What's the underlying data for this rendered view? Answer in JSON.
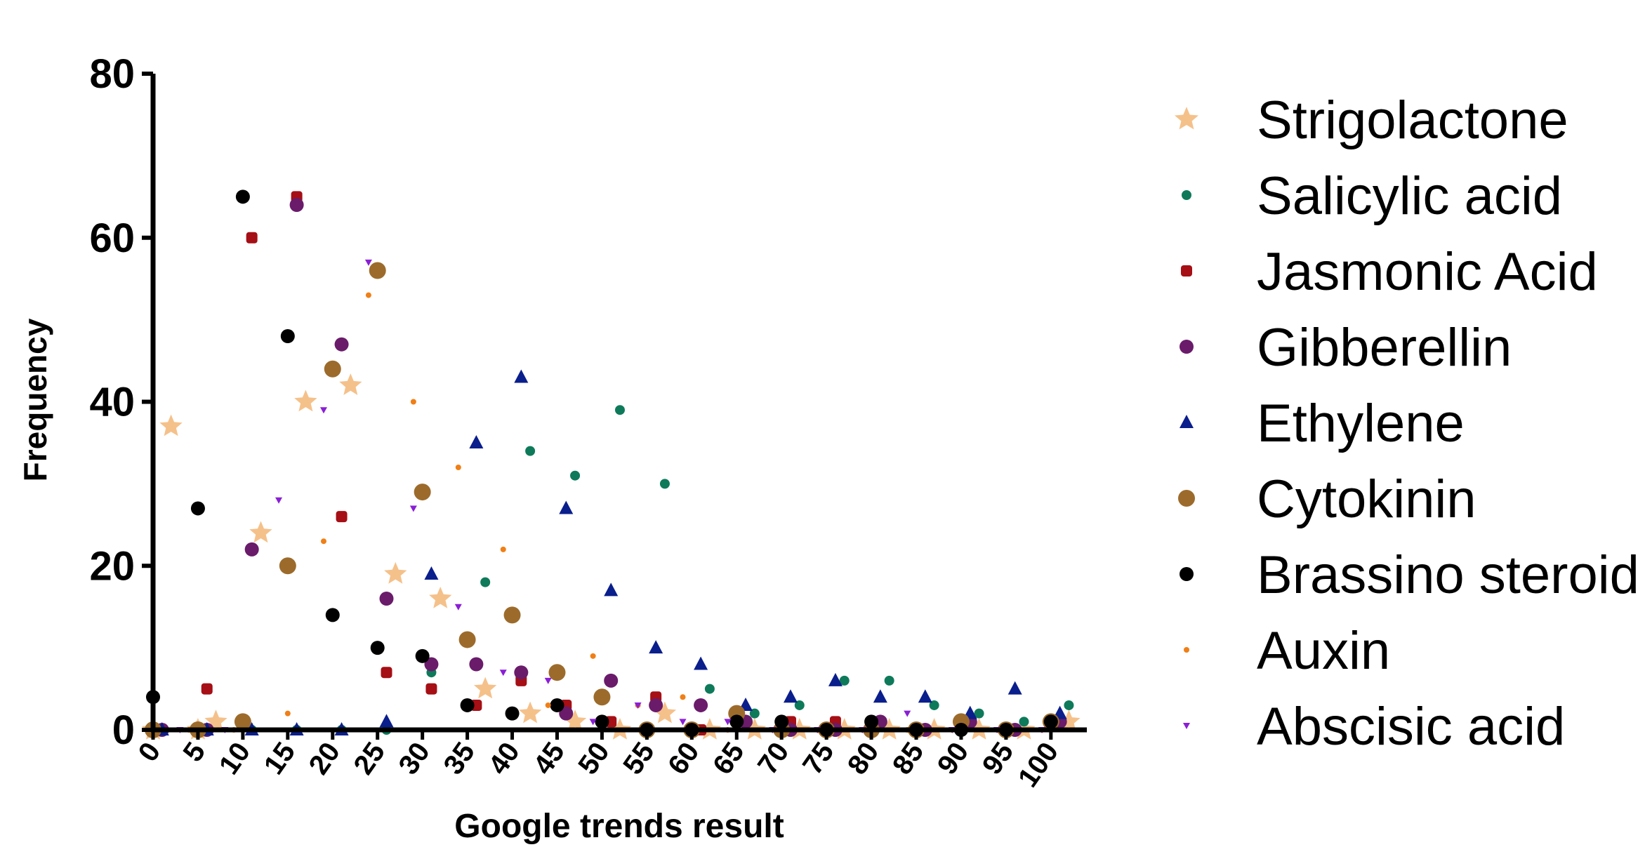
{
  "chart_data": {
    "type": "scatter",
    "xlabel": "Google trends result",
    "ylabel": "Frequency",
    "xlim": [
      0,
      104
    ],
    "ylim": [
      0,
      80
    ],
    "xticks": [
      "0",
      "5",
      "10",
      "15",
      "20",
      "25",
      "30",
      "35",
      "40",
      "45",
      "50",
      "55",
      "60",
      "65",
      "70",
      "75",
      "80",
      "85",
      "90",
      "95",
      "100"
    ],
    "yticks": [
      "0",
      "20",
      "40",
      "60",
      "80"
    ],
    "legend_position": "right",
    "series": [
      {
        "name": "Strigolactone",
        "color": "#F5C18A",
        "marker": "star",
        "points": [
          [
            0,
            0
          ],
          [
            2,
            37
          ],
          [
            5,
            0
          ],
          [
            7,
            1
          ],
          [
            12,
            24
          ],
          [
            17,
            40
          ],
          [
            22,
            42
          ],
          [
            27,
            19
          ],
          [
            32,
            16
          ],
          [
            37,
            5
          ],
          [
            42,
            2
          ],
          [
            47,
            1
          ],
          [
            52,
            0
          ],
          [
            57,
            2
          ],
          [
            62,
            0
          ],
          [
            67,
            0
          ],
          [
            72,
            0
          ],
          [
            77,
            0
          ],
          [
            82,
            0
          ],
          [
            87,
            0
          ],
          [
            92,
            0
          ],
          [
            97,
            0
          ],
          [
            102,
            1
          ]
        ]
      },
      {
        "name": "Salicylic acid",
        "color": "#0E7A5A",
        "marker": "circle-small",
        "points": [
          [
            1,
            0
          ],
          [
            6,
            0
          ],
          [
            11,
            0
          ],
          [
            16,
            0
          ],
          [
            21,
            0
          ],
          [
            26,
            0
          ],
          [
            31,
            7
          ],
          [
            37,
            18
          ],
          [
            42,
            34
          ],
          [
            47,
            31
          ],
          [
            52,
            39
          ],
          [
            57,
            30
          ],
          [
            62,
            5
          ],
          [
            67,
            2
          ],
          [
            72,
            3
          ],
          [
            77,
            6
          ],
          [
            82,
            6
          ],
          [
            87,
            3
          ],
          [
            92,
            2
          ],
          [
            97,
            1
          ],
          [
            102,
            3
          ]
        ]
      },
      {
        "name": "Jasmonic Acid",
        "color": "#A50F15",
        "marker": "square",
        "points": [
          [
            1,
            0
          ],
          [
            6,
            5
          ],
          [
            11,
            60
          ],
          [
            16,
            65
          ],
          [
            21,
            26
          ],
          [
            26,
            7
          ],
          [
            31,
            5
          ],
          [
            36,
            3
          ],
          [
            41,
            6
          ],
          [
            46,
            3
          ],
          [
            51,
            1
          ],
          [
            56,
            4
          ],
          [
            61,
            0
          ],
          [
            66,
            1
          ],
          [
            71,
            1
          ],
          [
            76,
            1
          ],
          [
            81,
            1
          ],
          [
            86,
            0
          ],
          [
            91,
            1
          ],
          [
            96,
            0
          ],
          [
            101,
            1
          ]
        ]
      },
      {
        "name": "Gibberellin",
        "color": "#6A1B6A",
        "marker": "circle",
        "points": [
          [
            1,
            0
          ],
          [
            6,
            0
          ],
          [
            11,
            22
          ],
          [
            16,
            64
          ],
          [
            21,
            47
          ],
          [
            26,
            16
          ],
          [
            31,
            8
          ],
          [
            36,
            8
          ],
          [
            41,
            7
          ],
          [
            46,
            2
          ],
          [
            51,
            6
          ],
          [
            56,
            3
          ],
          [
            61,
            3
          ],
          [
            66,
            1
          ],
          [
            71,
            0
          ],
          [
            76,
            0
          ],
          [
            81,
            1
          ],
          [
            86,
            0
          ],
          [
            91,
            1
          ],
          [
            96,
            0
          ],
          [
            101,
            1
          ]
        ]
      },
      {
        "name": "Ethylene",
        "color": "#0A1E8C",
        "marker": "triangle",
        "points": [
          [
            1,
            0
          ],
          [
            6,
            0
          ],
          [
            11,
            0
          ],
          [
            16,
            0
          ],
          [
            21,
            0
          ],
          [
            26,
            1
          ],
          [
            31,
            19
          ],
          [
            36,
            35
          ],
          [
            41,
            43
          ],
          [
            46,
            27
          ],
          [
            51,
            17
          ],
          [
            56,
            10
          ],
          [
            61,
            8
          ],
          [
            66,
            3
          ],
          [
            71,
            4
          ],
          [
            76,
            6
          ],
          [
            81,
            4
          ],
          [
            86,
            4
          ],
          [
            91,
            2
          ],
          [
            96,
            5
          ],
          [
            101,
            2
          ]
        ]
      },
      {
        "name": "Cytokinin",
        "color": "#9C6B2B",
        "marker": "circle-large",
        "points": [
          [
            0,
            0
          ],
          [
            5,
            0
          ],
          [
            10,
            1
          ],
          [
            15,
            20
          ],
          [
            20,
            44
          ],
          [
            25,
            56
          ],
          [
            30,
            29
          ],
          [
            35,
            11
          ],
          [
            40,
            14
          ],
          [
            45,
            7
          ],
          [
            50,
            4
          ],
          [
            55,
            0
          ],
          [
            60,
            0
          ],
          [
            65,
            2
          ],
          [
            70,
            0
          ],
          [
            75,
            0
          ],
          [
            80,
            0
          ],
          [
            85,
            0
          ],
          [
            90,
            1
          ],
          [
            95,
            0
          ],
          [
            100,
            1
          ]
        ]
      },
      {
        "name": "Brassino steroid",
        "color": "#000000",
        "marker": "circle",
        "points": [
          [
            0,
            4
          ],
          [
            5,
            27
          ],
          [
            10,
            65
          ],
          [
            15,
            48
          ],
          [
            20,
            14
          ],
          [
            25,
            10
          ],
          [
            30,
            9
          ],
          [
            35,
            3
          ],
          [
            40,
            2
          ],
          [
            45,
            3
          ],
          [
            50,
            1
          ],
          [
            55,
            0
          ],
          [
            60,
            0
          ],
          [
            65,
            1
          ],
          [
            70,
            1
          ],
          [
            75,
            0
          ],
          [
            80,
            1
          ],
          [
            85,
            0
          ],
          [
            90,
            0
          ],
          [
            95,
            0
          ],
          [
            100,
            1
          ]
        ]
      },
      {
        "name": "Auxin",
        "color": "#F07F16",
        "marker": "dot",
        "points": [
          [
            4,
            0
          ],
          [
            9,
            0
          ],
          [
            15,
            2
          ],
          [
            19,
            23
          ],
          [
            24,
            53
          ],
          [
            29,
            40
          ],
          [
            34,
            32
          ],
          [
            39,
            22
          ],
          [
            44,
            3
          ],
          [
            49,
            9
          ],
          [
            54,
            3
          ],
          [
            59,
            4
          ],
          [
            64,
            0
          ],
          [
            69,
            0
          ],
          [
            74,
            0
          ],
          [
            79,
            0
          ],
          [
            84,
            0
          ],
          [
            89,
            0
          ],
          [
            94,
            0
          ],
          [
            99,
            0
          ]
        ]
      },
      {
        "name": "Abscisic acid",
        "color": "#8A1FD6",
        "marker": "triangle-down",
        "points": [
          [
            3,
            0
          ],
          [
            8,
            0
          ],
          [
            14,
            28
          ],
          [
            19,
            39
          ],
          [
            24,
            57
          ],
          [
            29,
            27
          ],
          [
            34,
            15
          ],
          [
            39,
            7
          ],
          [
            44,
            6
          ],
          [
            49,
            1
          ],
          [
            54,
            3
          ],
          [
            59,
            1
          ],
          [
            64,
            1
          ],
          [
            69,
            0
          ],
          [
            74,
            0
          ],
          [
            79,
            0
          ],
          [
            84,
            2
          ],
          [
            89,
            0
          ],
          [
            94,
            0
          ],
          [
            99,
            0
          ]
        ]
      }
    ]
  }
}
